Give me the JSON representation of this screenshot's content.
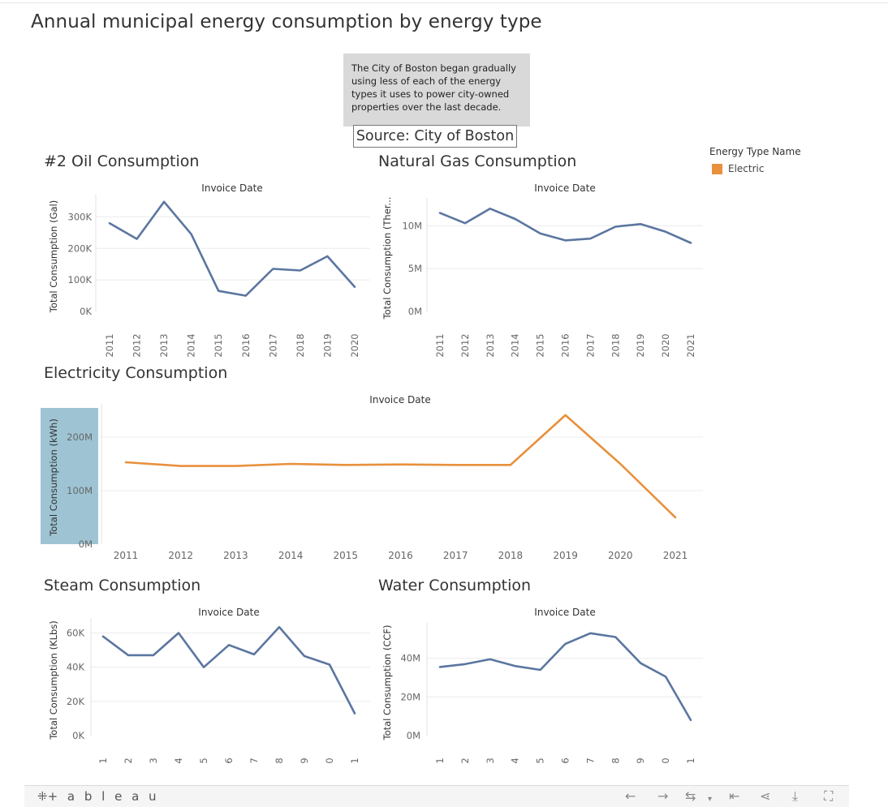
{
  "dashboard": {
    "title": "Annual municipal energy consumption by energy type",
    "note": "The City of Boston began gradually using less of each of the energy types it uses to power city-owned properties over the last decade.",
    "source": "Source: City of Boston"
  },
  "legend": {
    "title": "Energy Type Name",
    "items": [
      {
        "label": "Electric",
        "color": "#e8903c"
      }
    ]
  },
  "colors": {
    "line_default": "#5b76a0",
    "line_highlight": "#e8903c",
    "axis_highlight_bg": "#9ec4d4"
  },
  "chart_data": [
    {
      "id": "oil",
      "type": "line",
      "title": "#2 Oil Consumption",
      "xlabel": "Invoice Date",
      "ylabel": "Total Consumption (Gal)",
      "x": [
        "2011",
        "2012",
        "2013",
        "2014",
        "2015",
        "2016",
        "2017",
        "2018",
        "2019",
        "2020"
      ],
      "y": [
        280000,
        230000,
        348000,
        245000,
        65000,
        50000,
        135000,
        130000,
        175000,
        78000
      ],
      "yticks": [
        0,
        100000,
        200000,
        300000
      ],
      "ytick_labels": [
        "0K",
        "100K",
        "200K",
        "300K"
      ],
      "ylim": [
        0,
        350000
      ],
      "x_labels_rotated": true,
      "color": "#5b76a0"
    },
    {
      "id": "gas",
      "type": "line",
      "title": "Natural Gas Consumption",
      "xlabel": "Invoice Date",
      "ylabel": "Total Consumption (Ther...",
      "x": [
        "2011",
        "2012",
        "2013",
        "2014",
        "2015",
        "2016",
        "2017",
        "2018",
        "2019",
        "2020",
        "2021"
      ],
      "y": [
        11500000,
        10300000,
        12000000,
        10800000,
        9100000,
        8300000,
        8500000,
        9900000,
        10200000,
        9300000,
        8000000
      ],
      "yticks": [
        0,
        5000000,
        10000000
      ],
      "ytick_labels": [
        "0M",
        "5M",
        "10M"
      ],
      "ylim": [
        0,
        12500000
      ],
      "x_labels_rotated": true,
      "color": "#5b76a0"
    },
    {
      "id": "elec",
      "type": "line",
      "title": "Electricity Consumption",
      "xlabel": "Invoice Date",
      "ylabel": "Total Consumption (kWh)",
      "x": [
        "2011",
        "2012",
        "2013",
        "2014",
        "2015",
        "2016",
        "2017",
        "2018",
        "2019",
        "2020",
        "2021"
      ],
      "y": [
        153000000,
        146000000,
        146000000,
        150000000,
        148000000,
        149000000,
        148000000,
        148000000,
        241000000,
        150000000,
        50000000
      ],
      "yticks": [
        0,
        100000000,
        200000000
      ],
      "ytick_labels": [
        "0M",
        "100M",
        "200M"
      ],
      "ylim": [
        0,
        250000000
      ],
      "x_labels_rotated": false,
      "color": "#e8903c"
    },
    {
      "id": "steam",
      "type": "line",
      "title": "Steam Consumption",
      "xlabel": "Invoice Date",
      "ylabel": "Total Consumption (KLbs)",
      "x": [
        "1",
        "2",
        "3",
        "4",
        "5",
        "6",
        "7",
        "8",
        "9",
        "0",
        "1"
      ],
      "y": [
        58000,
        47000,
        47000,
        60000,
        40000,
        53000,
        47500,
        63500,
        46500,
        41500,
        13000
      ],
      "yticks": [
        0,
        20000,
        40000,
        60000
      ],
      "ytick_labels": [
        "0K",
        "20K",
        "40K",
        "60K"
      ],
      "ylim": [
        0,
        65000
      ],
      "x_labels_rotated": true,
      "color": "#5b76a0"
    },
    {
      "id": "water",
      "type": "line",
      "title": "Water Consumption",
      "xlabel": "Invoice Date",
      "ylabel": "Total Consumption (CCF)",
      "x": [
        "1",
        "2",
        "3",
        "4",
        "5",
        "6",
        "7",
        "8",
        "9",
        "0",
        "1"
      ],
      "y": [
        35500000,
        37000000,
        39500000,
        36000000,
        34000000,
        47500000,
        53000000,
        51000000,
        37500000,
        30500000,
        8000000
      ],
      "yticks": [
        0,
        20000000,
        40000000
      ],
      "ytick_labels": [
        "0M",
        "20M",
        "40M"
      ],
      "ylim": [
        0,
        55000000
      ],
      "x_labels_rotated": true,
      "color": "#5b76a0"
    }
  ],
  "toolbar": {
    "brand": "+ a b l e a u",
    "icons": [
      "undo-icon",
      "redo-icon",
      "revert-icon",
      "revert-dropdown-icon",
      "reset-icon",
      "share-icon",
      "download-icon",
      "fullscreen-icon"
    ]
  }
}
